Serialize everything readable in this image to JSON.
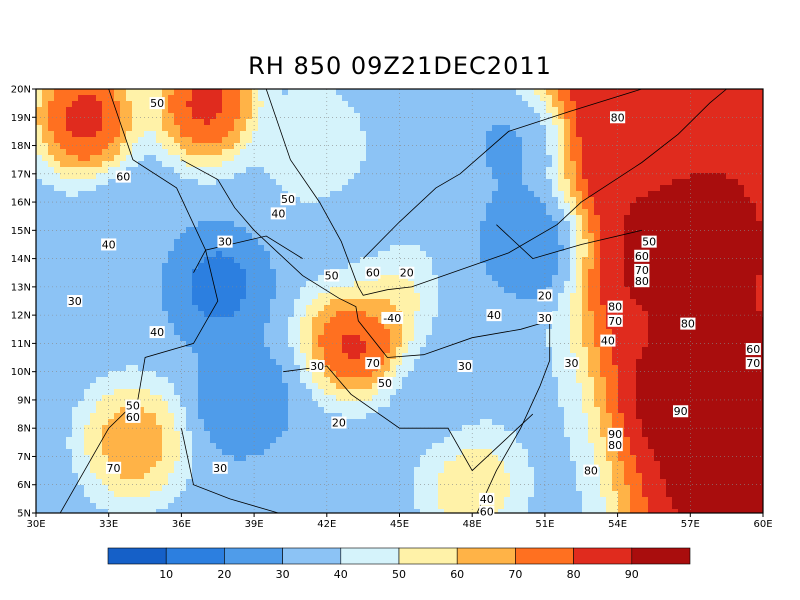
{
  "title": "RH 850 09Z21DEC2011",
  "chart_data": {
    "type": "heatmap",
    "title": "RH 850 09Z21DEC2011",
    "xlim": [
      30,
      60
    ],
    "ylim": [
      5,
      20
    ],
    "x_ticks": [
      "30E",
      "33E",
      "36E",
      "39E",
      "42E",
      "45E",
      "48E",
      "51E",
      "54E",
      "57E",
      "60E"
    ],
    "y_ticks": [
      "5N",
      "6N",
      "7N",
      "8N",
      "9N",
      "10N",
      "11N",
      "12N",
      "13N",
      "14N",
      "15N",
      "16N",
      "17N",
      "18N",
      "19N",
      "20N"
    ],
    "colorbar": {
      "levels": [
        10,
        20,
        30,
        40,
        50,
        60,
        70,
        80,
        90
      ],
      "colors": [
        "#1560c8",
        "#2c7fe0",
        "#4f9cea",
        "#8cc3f5",
        "#d5f3fb",
        "#fff2a8",
        "#ffb347",
        "#ff7020",
        "#e02b1e",
        "#a90d0d"
      ]
    },
    "hotspots": [
      {
        "lon": 32.0,
        "lat": 19.0,
        "rh": 97
      },
      {
        "lon": 37.0,
        "lat": 19.5,
        "rh": 96
      },
      {
        "lon": 43.2,
        "lat": 11.2,
        "rh": 97
      },
      {
        "lon": 56.5,
        "lat": 9.0,
        "rh": 97
      },
      {
        "lon": 58.0,
        "lat": 6.5,
        "rh": 96
      },
      {
        "lon": 55.5,
        "lat": 14.0,
        "rh": 92
      },
      {
        "lon": 54.0,
        "lat": 18.5,
        "rh": 88
      },
      {
        "lon": 34.0,
        "lat": 7.5,
        "rh": 75
      },
      {
        "lon": 48.0,
        "lat": 6.0,
        "rh": 62
      },
      {
        "lon": 44.0,
        "lat": 13.0,
        "rh": 70
      },
      {
        "lon": 41.5,
        "lat": 18.0,
        "rh": 50
      },
      {
        "lon": 37.5,
        "lat": 13.0,
        "rh": 12
      },
      {
        "lon": 38.5,
        "lat": 9.0,
        "rh": 20
      },
      {
        "lon": 43.5,
        "lat": 14.0,
        "rh": 22
      },
      {
        "lon": 50.5,
        "lat": 14.5,
        "rh": 15
      },
      {
        "lon": 50.0,
        "lat": 18.0,
        "rh": 25
      },
      {
        "lon": 34.0,
        "lat": 15.0,
        "rh": 30
      },
      {
        "lon": 46.5,
        "lat": 9.0,
        "rh": 35
      },
      {
        "lon": 48.0,
        "lat": 11.0,
        "rh": 40
      }
    ],
    "contour_labels": [
      {
        "text": "50",
        "lon": 35.0,
        "lat": 19.5
      },
      {
        "text": "60",
        "lon": 33.6,
        "lat": 16.9
      },
      {
        "text": "40",
        "lon": 33.0,
        "lat": 14.5
      },
      {
        "text": "30",
        "lon": 31.6,
        "lat": 12.5
      },
      {
        "text": "40",
        "lon": 35.0,
        "lat": 11.4
      },
      {
        "text": "30",
        "lon": 37.8,
        "lat": 14.6
      },
      {
        "text": "50",
        "lon": 40.4,
        "lat": 16.1
      },
      {
        "text": "40",
        "lon": 40.0,
        "lat": 15.6
      },
      {
        "text": "50",
        "lon": 42.2,
        "lat": 13.4
      },
      {
        "text": "60",
        "lon": 43.9,
        "lat": 13.5
      },
      {
        "text": "20",
        "lon": 45.3,
        "lat": 13.5
      },
      {
        "text": "-40",
        "lon": 44.7,
        "lat": 11.9
      },
      {
        "text": "70",
        "lon": 43.9,
        "lat": 10.3
      },
      {
        "text": "50",
        "lon": 44.4,
        "lat": 9.6
      },
      {
        "text": "30",
        "lon": 41.6,
        "lat": 10.2
      },
      {
        "text": "20",
        "lon": 42.5,
        "lat": 8.2
      },
      {
        "text": "40",
        "lon": 48.9,
        "lat": 12.0
      },
      {
        "text": "20",
        "lon": 51.0,
        "lat": 12.7
      },
      {
        "text": "30",
        "lon": 51.0,
        "lat": 11.9
      },
      {
        "text": "30",
        "lon": 47.7,
        "lat": 10.2
      },
      {
        "text": "30",
        "lon": 52.1,
        "lat": 10.3
      },
      {
        "text": "40",
        "lon": 53.6,
        "lat": 11.1
      },
      {
        "text": "80",
        "lon": 53.9,
        "lat": 12.3
      },
      {
        "text": "70",
        "lon": 53.9,
        "lat": 11.8
      },
      {
        "text": "50",
        "lon": 55.3,
        "lat": 14.6
      },
      {
        "text": "60",
        "lon": 55.0,
        "lat": 14.1
      },
      {
        "text": "70",
        "lon": 55.0,
        "lat": 13.6
      },
      {
        "text": "80",
        "lon": 55.0,
        "lat": 13.2
      },
      {
        "text": "80",
        "lon": 56.9,
        "lat": 11.7
      },
      {
        "text": "60",
        "lon": 59.6,
        "lat": 10.8
      },
      {
        "text": "70",
        "lon": 59.6,
        "lat": 10.3
      },
      {
        "text": "90",
        "lon": 56.6,
        "lat": 8.6
      },
      {
        "text": "90",
        "lon": 53.9,
        "lat": 7.8
      },
      {
        "text": "80",
        "lon": 53.9,
        "lat": 7.4
      },
      {
        "text": "80",
        "lon": 52.9,
        "lat": 6.5
      },
      {
        "text": "80",
        "lon": 54.0,
        "lat": 19.0
      },
      {
        "text": "50",
        "lon": 34.0,
        "lat": 8.8
      },
      {
        "text": "60",
        "lon": 34.0,
        "lat": 8.4
      },
      {
        "text": "70",
        "lon": 33.2,
        "lat": 6.6
      },
      {
        "text": "30",
        "lon": 37.6,
        "lat": 6.6
      },
      {
        "text": "40",
        "lon": 48.6,
        "lat": 5.5
      },
      {
        "text": "60",
        "lon": 48.6,
        "lat": 5.05
      }
    ]
  }
}
